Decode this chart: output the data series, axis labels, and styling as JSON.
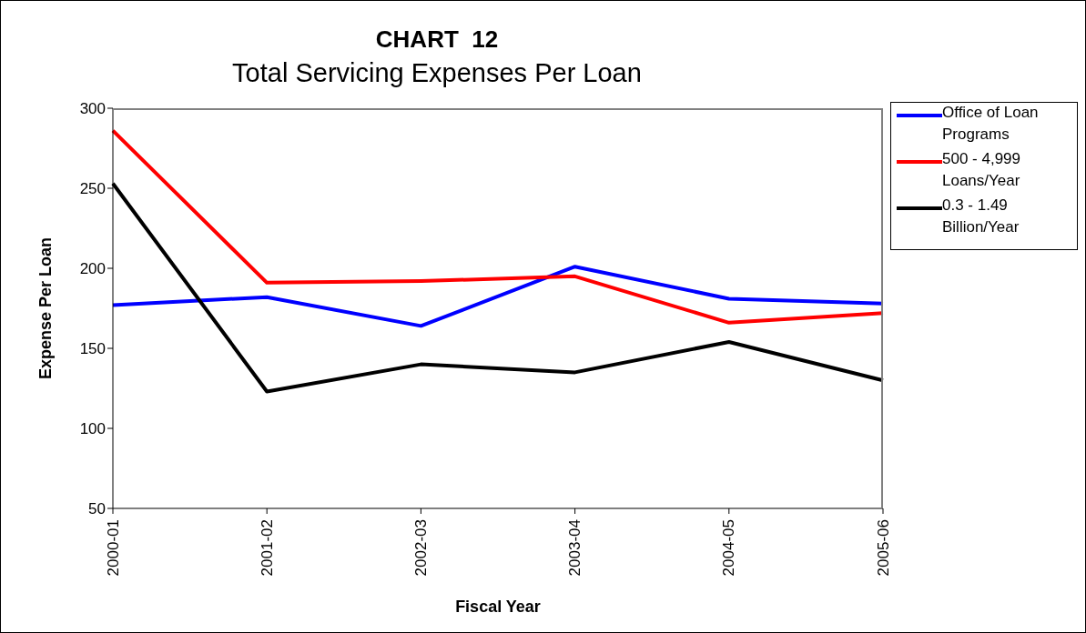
{
  "chart_data": {
    "type": "line",
    "title": "CHART  12",
    "subtitle": "Total Servicing Expenses Per Loan",
    "xlabel": "Fiscal Year",
    "ylabel": "Expense Per Loan",
    "categories": [
      "2000-01",
      "2001-02",
      "2002-03",
      "2003-04",
      "2004-05",
      "2005-06"
    ],
    "series": [
      {
        "name": "Office of Loan Programs",
        "color": "#0000ff",
        "values": [
          177,
          182,
          164,
          201,
          181,
          178
        ]
      },
      {
        "name": "500 - 4,999 Loans/Year",
        "color": "#ff0000",
        "values": [
          286,
          191,
          192,
          195,
          166,
          172
        ]
      },
      {
        "name": "0.3 - 1.49 Billion/Year",
        "color": "#000000",
        "values": [
          253,
          123,
          140,
          135,
          154,
          130
        ]
      }
    ],
    "ylim": [
      50,
      300
    ],
    "yticks": [
      50,
      100,
      150,
      200,
      250,
      300
    ],
    "legend": "right",
    "marker": "none",
    "line_style": "solid"
  }
}
